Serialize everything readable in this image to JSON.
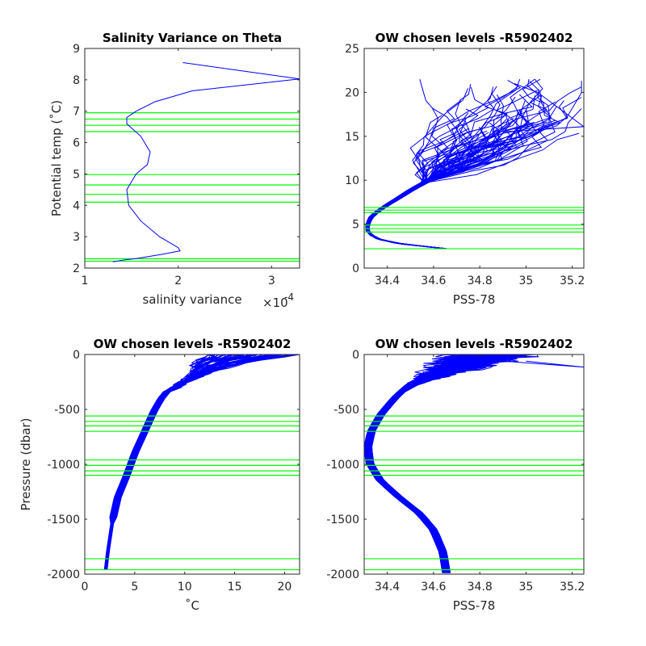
{
  "colors": {
    "profile": "#0000ff",
    "level": "#00ff00",
    "axis": "#262626"
  },
  "chart_data": [
    {
      "type": "line",
      "title": "Salinity Variance on Theta",
      "xlabel": "salinity variance",
      "x_exponent_label": "×10",
      "x_exponent_power": "-4",
      "ylabel": "Potential temp (˚C)",
      "xlim": [
        1.0,
        3.3
      ],
      "ylim": [
        2,
        9
      ],
      "xticks": [
        1,
        2,
        3
      ],
      "yticks": [
        2,
        3,
        4,
        5,
        6,
        7,
        8,
        9
      ],
      "xtick_labels": [
        "1",
        "2",
        "3"
      ],
      "ytick_labels": [
        "2",
        "3",
        "4",
        "5",
        "6",
        "7",
        "8",
        "9"
      ],
      "series": [
        {
          "x": [
            2.05,
            3.3,
            2.15,
            1.75,
            1.55,
            1.45,
            1.45,
            1.6,
            1.7,
            1.67,
            1.55,
            1.45,
            1.47,
            1.6,
            1.8,
            2.0,
            2.02,
            1.85,
            1.55,
            1.4,
            1.3
          ],
          "y": [
            8.55,
            8.03,
            7.65,
            7.3,
            7.0,
            6.8,
            6.6,
            6.2,
            5.7,
            5.3,
            5.0,
            4.5,
            4.0,
            3.5,
            3.0,
            2.65,
            2.55,
            2.45,
            2.3,
            2.25,
            2.2
          ]
        }
      ],
      "levels": [
        6.95,
        6.75,
        6.55,
        6.35,
        4.98,
        4.65,
        4.35,
        4.1,
        2.3,
        2.22
      ]
    },
    {
      "type": "line",
      "title": "OW chosen levels -R5902402",
      "xlabel": "PSS-78",
      "ylabel": "",
      "xlim": [
        34.3,
        35.25
      ],
      "ylim": [
        0,
        25
      ],
      "xticks": [
        34.4,
        34.6,
        34.8,
        35.0,
        35.2
      ],
      "yticks": [
        0,
        5,
        10,
        15,
        20,
        25
      ],
      "xtick_labels": [
        "34.4",
        "34.6",
        "34.8",
        "35",
        "35.2"
      ],
      "ytick_labels": [
        "0",
        "5",
        "10",
        "15",
        "20",
        "25"
      ],
      "levels": [
        6.9,
        6.6,
        6.3,
        4.9,
        4.5,
        4.1,
        2.2
      ]
    },
    {
      "type": "line",
      "title": "OW chosen levels -R5902402",
      "xlabel": "˚C",
      "ylabel": "Pressure (dbar)",
      "xlim": [
        0,
        21.5
      ],
      "ylim": [
        -2000,
        0
      ],
      "xticks": [
        0,
        5,
        10,
        15,
        20
      ],
      "yticks": [
        -2000,
        -1500,
        -1000,
        -500,
        0
      ],
      "xtick_labels": [
        "0",
        "5",
        "10",
        "15",
        "20"
      ],
      "ytick_labels": [
        "-2000",
        "-1500",
        "-1000",
        "-500",
        "0"
      ],
      "levels": [
        -560,
        -610,
        -650,
        -700,
        -960,
        -1010,
        -1060,
        -1100,
        -1860,
        -1960
      ]
    },
    {
      "type": "line",
      "title": "OW chosen levels -R5902402",
      "xlabel": "PSS-78",
      "ylabel": "",
      "xlim": [
        34.3,
        35.25
      ],
      "ylim": [
        -2000,
        0
      ],
      "xticks": [
        34.4,
        34.6,
        34.8,
        35.0,
        35.2
      ],
      "yticks": [
        -2000,
        -1500,
        -1000,
        -500,
        0
      ],
      "xtick_labels": [
        "34.4",
        "34.6",
        "34.8",
        "35",
        "35.2"
      ],
      "ytick_labels": [
        "-2000",
        "-1500",
        "-1000",
        "-500",
        "0"
      ],
      "levels": [
        -560,
        -610,
        -650,
        -700,
        -960,
        -1010,
        -1060,
        -1100,
        -1860,
        -1960
      ]
    }
  ]
}
